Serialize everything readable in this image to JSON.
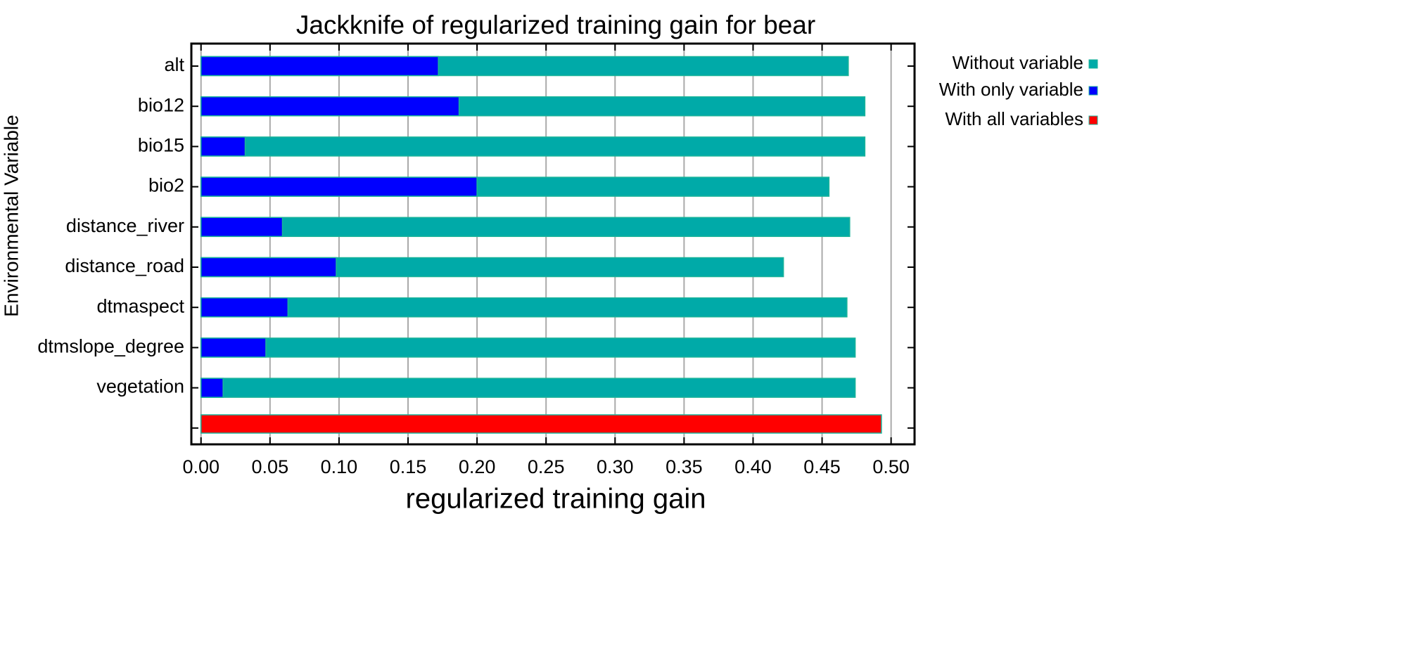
{
  "chart_data": {
    "type": "bar",
    "orientation": "horizontal",
    "title": "Jackknife of regularized training gain for bear",
    "x_label": "regularized training gain",
    "y_label": "Environmental Variable",
    "categories": [
      "alt",
      "bio12",
      "bio15",
      "bio2",
      "distance_river",
      "distance_road",
      "dtmaspect",
      "dtmslope_degree",
      "vegetation",
      null
    ],
    "series": [
      {
        "name": "Without variable",
        "color": "#00aaa8",
        "values": [
          0.469,
          0.481,
          0.481,
          0.455,
          0.47,
          0.422,
          0.468,
          0.474,
          0.474,
          null
        ]
      },
      {
        "name": "With only variable",
        "color": "#0000ff",
        "values": [
          0.172,
          0.187,
          0.032,
          0.2,
          0.059,
          0.098,
          0.063,
          0.047,
          0.016,
          null
        ]
      },
      {
        "name": "With all variables",
        "color": "#ff0000",
        "values": [
          null,
          null,
          null,
          null,
          null,
          null,
          null,
          null,
          null,
          0.493
        ]
      }
    ],
    "xlim": [
      -0.007,
      0.517
    ],
    "xticks": [
      {
        "value": 0,
        "label": "0.00"
      },
      {
        "value": 0.05,
        "label": "0.05"
      },
      {
        "value": 0.1,
        "label": "0.10"
      },
      {
        "value": 0.15,
        "label": "0.15"
      },
      {
        "value": 0.2,
        "label": "0.20"
      },
      {
        "value": 0.25,
        "label": "0.25"
      },
      {
        "value": 0.3,
        "label": "0.30"
      },
      {
        "value": 0.35,
        "label": "0.35"
      },
      {
        "value": 0.4,
        "label": "0.40"
      },
      {
        "value": 0.45,
        "label": "0.45"
      },
      {
        "value": 0.5,
        "label": "0.50"
      }
    ],
    "grid": true,
    "legend": "right"
  }
}
